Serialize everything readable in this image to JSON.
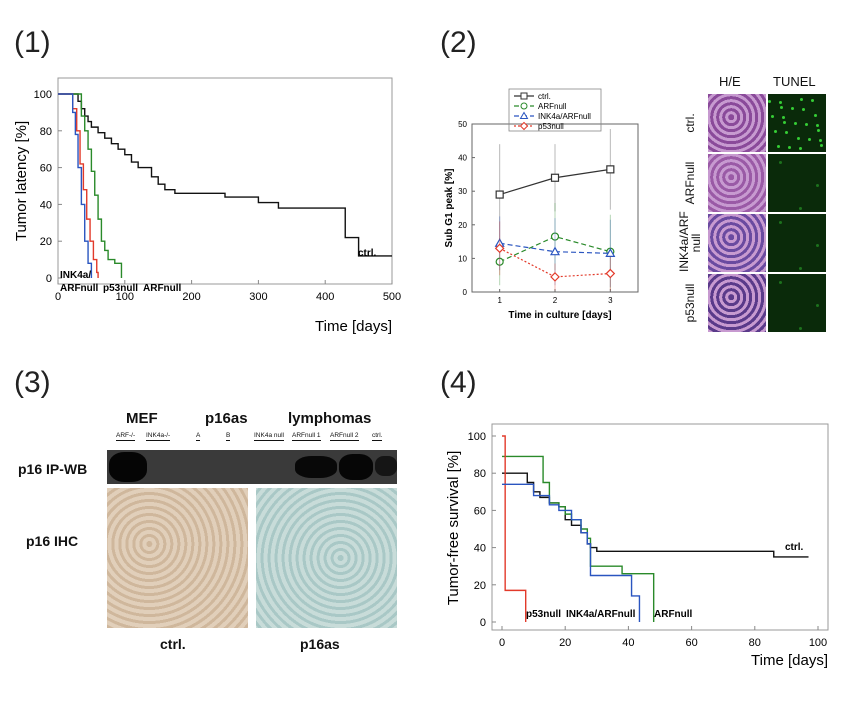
{
  "panels": {
    "p1": {
      "label": "(1)"
    },
    "p2": {
      "label": "(2)"
    },
    "p3": {
      "label": "(3)"
    },
    "p4": {
      "label": "(4)"
    }
  },
  "chart_data": [
    {
      "id": "panel1",
      "type": "line",
      "step": true,
      "xlabel": "Time [days]",
      "ylabel": "Tumor latency [%]",
      "xlim": [
        0,
        500
      ],
      "ylim": [
        0,
        100
      ],
      "xticks": [
        "0",
        "100",
        "200",
        "300",
        "400",
        "500"
      ],
      "yticks": [
        "0",
        "20",
        "40",
        "60",
        "80",
        "100"
      ],
      "series": [
        {
          "name": "ctrl.",
          "color": "#111111",
          "x": [
            0,
            25,
            30,
            35,
            40,
            45,
            50,
            60,
            70,
            80,
            90,
            100,
            110,
            120,
            140,
            150,
            160,
            175,
            250,
            300,
            330,
            425,
            430,
            450,
            500
          ],
          "y": [
            100,
            100,
            96,
            92,
            88,
            85,
            82,
            79,
            76,
            73,
            70,
            67,
            63,
            60,
            55,
            51,
            48,
            46,
            44,
            41,
            38,
            38,
            22,
            12,
            12
          ]
        },
        {
          "name": "ARFnull",
          "color": "#2a8a2a",
          "x": [
            0,
            30,
            35,
            40,
            45,
            50,
            55,
            60,
            65,
            70,
            75,
            85,
            95
          ],
          "y": [
            100,
            100,
            88,
            80,
            70,
            58,
            45,
            32,
            20,
            15,
            10,
            8,
            0
          ]
        },
        {
          "name": "p53null",
          "color": "#e23a2a",
          "x": [
            0,
            18,
            22,
            28,
            33,
            38,
            43,
            48,
            53,
            58,
            60
          ],
          "y": [
            100,
            100,
            92,
            80,
            62,
            48,
            32,
            20,
            10,
            3,
            0
          ]
        },
        {
          "name": "INK4a/ARFnull",
          "color": "#2a55c0",
          "x": [
            0,
            18,
            22,
            26,
            30,
            35,
            40,
            45,
            50
          ],
          "y": [
            100,
            100,
            90,
            78,
            60,
            40,
            20,
            8,
            0
          ]
        }
      ],
      "annotations": [
        "ctrl.",
        "INK4a/",
        "ARFnull",
        "p53null",
        "ARFnull"
      ]
    },
    {
      "id": "panel2",
      "type": "line",
      "xlabel": "Time in culture [days]",
      "ylabel": "Sub G1 peak [%]",
      "xlim": [
        0.5,
        3.5
      ],
      "ylim": [
        0,
        50
      ],
      "xticks": [
        "1",
        "2",
        "3"
      ],
      "yticks": [
        "0",
        "10",
        "20",
        "30",
        "40",
        "50"
      ],
      "x": [
        1,
        2,
        3
      ],
      "series": [
        {
          "name": "ctrl.",
          "color": "#333333",
          "marker": "square",
          "dash": "solid",
          "values": [
            29,
            34,
            36.5
          ],
          "err": [
            15,
            10,
            12
          ]
        },
        {
          "name": "ARFnull",
          "color": "#2a8a2a",
          "marker": "circle",
          "dash": "dashed",
          "values": [
            9,
            16.5,
            12
          ],
          "err": [
            7,
            10,
            11
          ]
        },
        {
          "name": "INK4a/ARFnull",
          "color": "#2a55c0",
          "marker": "triangle",
          "dash": "dashed",
          "values": [
            14.5,
            12,
            11.5
          ],
          "err": [
            8,
            10,
            10
          ]
        },
        {
          "name": "p53null",
          "color": "#e23a2a",
          "marker": "diamond",
          "dash": "dotted",
          "values": [
            13,
            4.5,
            5.5
          ],
          "err": [
            8,
            4,
            5
          ]
        }
      ]
    },
    {
      "id": "panel4",
      "type": "line",
      "step": true,
      "xlabel": "Time [days]",
      "ylabel": "Tumor-free survival [%]",
      "xlim": [
        0,
        100
      ],
      "ylim": [
        0,
        100
      ],
      "xticks": [
        "0",
        "20",
        "40",
        "60",
        "80",
        "100"
      ],
      "yticks": [
        "0",
        "20",
        "40",
        "60",
        "80",
        "100"
      ],
      "series": [
        {
          "name": "ctrl.",
          "color": "#111111",
          "x": [
            0,
            5,
            8,
            10,
            12,
            15,
            18,
            20,
            22,
            25,
            27,
            28,
            30,
            85,
            86,
            97
          ],
          "y": [
            80,
            80,
            75,
            70,
            67,
            64,
            62,
            55,
            52,
            48,
            42,
            40,
            38,
            38,
            35,
            35
          ]
        },
        {
          "name": "ARFnull",
          "color": "#2a8a2a",
          "x": [
            0,
            10,
            13,
            15,
            18,
            20,
            22,
            25,
            27,
            28,
            37,
            38,
            47,
            48
          ],
          "y": [
            89,
            89,
            75,
            64,
            62,
            58,
            55,
            50,
            45,
            30,
            30,
            26,
            26,
            0
          ]
        },
        {
          "name": "p53null",
          "color": "#e23a2a",
          "x": [
            0,
            0.5,
            1,
            7,
            7.5
          ],
          "y": [
            100,
            100,
            17,
            17,
            0
          ]
        },
        {
          "name": "INK4a/ARFnull",
          "color": "#2a55c0",
          "x": [
            0,
            8,
            10,
            15,
            18,
            22,
            25,
            27,
            28,
            40,
            41,
            43,
            43.5
          ],
          "y": [
            74,
            74,
            68,
            63,
            60,
            55,
            48,
            42,
            25,
            25,
            14,
            14,
            0
          ]
        }
      ],
      "annotations": [
        "ctrl.",
        "p53null",
        "INK4a/ARFnull",
        "ARFnull"
      ]
    }
  ],
  "panel2_micro": {
    "col_headers": [
      "H/E",
      "TUNEL"
    ],
    "rows": [
      "ctrl.",
      "ARFnull",
      "INK4a/ARF null",
      "p53null"
    ],
    "colors": {
      "he": "#8a4a9a",
      "he_dark": "#5a3a8a",
      "tunel": "#0a2a0a",
      "dots": "#3adf3a"
    }
  },
  "panel3": {
    "groups": [
      "MEF",
      "p16as",
      "lymphomas"
    ],
    "lanes": [
      "ARF-/-",
      "INK4a-/-",
      "A",
      "B",
      "INK4a null",
      "ARFnull 1",
      "ARFnull 2",
      "ctrl."
    ],
    "row_labels": [
      "p16 IP-WB",
      "p16 IHC"
    ],
    "ihc_captions": [
      "ctrl.",
      "p16as"
    ],
    "colors": {
      "ctrl_tissue": "#d9c4ad",
      "p16as_tissue": "#b9d4d2"
    }
  }
}
